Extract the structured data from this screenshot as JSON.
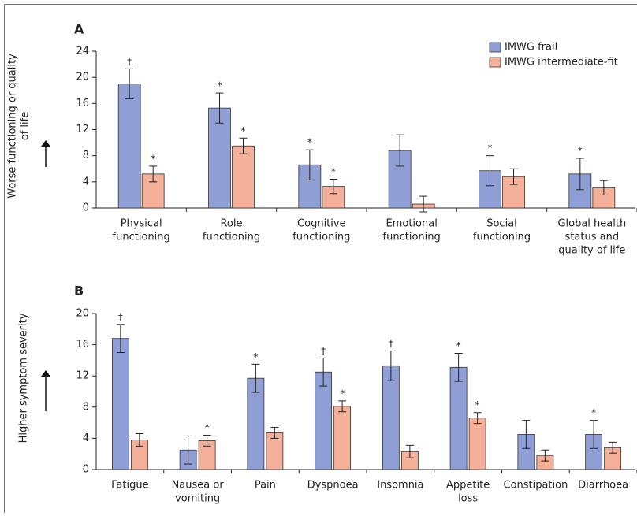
{
  "chart_data": [
    {
      "type": "bar",
      "panel": "A",
      "ylabel": [
        "Worse functioning or quality",
        "of life"
      ],
      "categories": [
        [
          "Physical",
          "functioning"
        ],
        [
          "Role",
          "functioning"
        ],
        [
          "Cognitive",
          "functioning"
        ],
        [
          "Emotional",
          "functioning"
        ],
        [
          "Social",
          "functioning"
        ],
        [
          "Global health",
          "status and",
          "quality of life"
        ]
      ],
      "series": [
        {
          "name": "IMWG frail",
          "color": "#8f9fd6",
          "values": [
            19.0,
            15.3,
            6.6,
            8.8,
            5.7,
            5.2
          ],
          "errors": [
            2.3,
            2.3,
            2.3,
            2.4,
            2.3,
            2.4
          ],
          "markers": [
            "†",
            "*",
            "*",
            null,
            "*",
            "*"
          ]
        },
        {
          "name": "IMWG intermediate-fit",
          "color": "#f5b09a",
          "values": [
            5.2,
            9.5,
            3.3,
            0.6,
            4.8,
            3.1
          ],
          "errors": [
            1.2,
            1.2,
            1.1,
            1.2,
            1.2,
            1.1
          ],
          "markers": [
            "*",
            "*",
            "*",
            null,
            null,
            null
          ]
        }
      ],
      "ylim": [
        0,
        24
      ],
      "yticks": [
        0,
        4,
        8,
        12,
        16,
        20,
        24
      ],
      "legend": "upper right"
    },
    {
      "type": "bar",
      "panel": "B",
      "ylabel": [
        "Higher symptom severity"
      ],
      "categories": [
        [
          "Fatigue"
        ],
        [
          "Nausea or",
          "vomiting"
        ],
        [
          "Pain"
        ],
        [
          "Dyspnoea"
        ],
        [
          "Insomnia"
        ],
        [
          "Appetite",
          "loss"
        ],
        [
          "Constipation"
        ],
        [
          "Diarrhoea"
        ]
      ],
      "series": [
        {
          "color": "#8f9fd6",
          "values": [
            16.8,
            2.5,
            11.7,
            12.5,
            13.3,
            13.1,
            4.5,
            4.5
          ],
          "errors": [
            1.8,
            1.8,
            1.8,
            1.8,
            1.9,
            1.8,
            1.8,
            1.8
          ],
          "markers": [
            "†",
            null,
            "*",
            "†",
            "†",
            "*",
            null,
            "*"
          ]
        },
        {
          "color": "#f5b09a",
          "values": [
            3.8,
            3.7,
            4.7,
            8.1,
            2.3,
            6.6,
            1.8,
            2.8
          ],
          "errors": [
            0.8,
            0.7,
            0.7,
            0.7,
            0.8,
            0.7,
            0.7,
            0.7
          ],
          "markers": [
            null,
            "*",
            null,
            "*",
            null,
            "*",
            null,
            null
          ]
        }
      ],
      "ylim": [
        0,
        20
      ],
      "yticks": [
        0,
        4,
        8,
        12,
        16,
        20
      ]
    }
  ]
}
